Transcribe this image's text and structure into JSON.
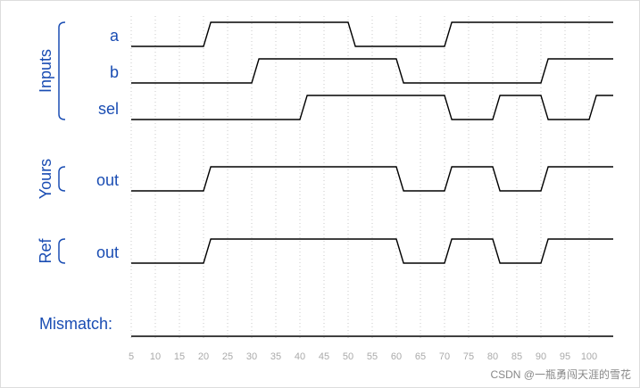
{
  "groups": [
    {
      "label": "Inputs",
      "signals": [
        {
          "name": "a",
          "initial": 0,
          "edges": [
            20,
            50,
            70
          ]
        },
        {
          "name": "b",
          "initial": 0,
          "edges": [
            30,
            60,
            90
          ]
        },
        {
          "name": "sel",
          "initial": 0,
          "edges": [
            40,
            70,
            80,
            90,
            100
          ]
        }
      ]
    },
    {
      "label": "Yours",
      "signals": [
        {
          "name": "out",
          "initial": 0,
          "edges": [
            20,
            60,
            70,
            80,
            90
          ]
        }
      ]
    },
    {
      "label": "Ref",
      "signals": [
        {
          "name": "out",
          "initial": 0,
          "edges": [
            20,
            60,
            70,
            80,
            90
          ]
        }
      ]
    }
  ],
  "mismatch": {
    "label": "Mismatch:",
    "initial": 0
  },
  "time_axis": {
    "range": [
      5,
      105
    ],
    "ticks": [
      5,
      10,
      15,
      20,
      25,
      30,
      35,
      40,
      45,
      50,
      55,
      60,
      65,
      70,
      75,
      80,
      85,
      90,
      95,
      100
    ]
  },
  "watermark": "CSDN @一瓶勇闯天涯的雪花"
}
